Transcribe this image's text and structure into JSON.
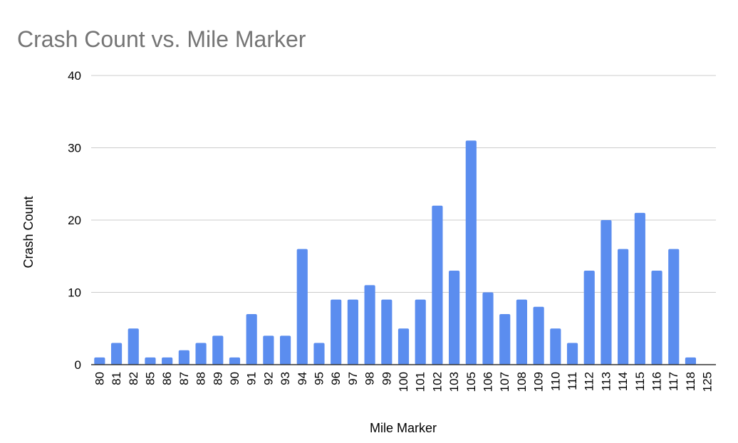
{
  "chart_data": {
    "type": "bar",
    "title": "Crash Count vs. Mile Marker",
    "xlabel": "Mile Marker",
    "ylabel": "Crash Count",
    "ylim": [
      0,
      40
    ],
    "yticks": [
      "0",
      "10",
      "20",
      "30",
      "40"
    ],
    "grid": true,
    "bar_color": "#5b8def",
    "categories": [
      "80",
      "81",
      "82",
      "85",
      "86",
      "87",
      "88",
      "89",
      "90",
      "91",
      "92",
      "93",
      "94",
      "95",
      "96",
      "97",
      "98",
      "99",
      "100",
      "101",
      "102",
      "103",
      "105",
      "106",
      "107",
      "108",
      "109",
      "110",
      "111",
      "112",
      "113",
      "114",
      "115",
      "116",
      "117",
      "118",
      "125"
    ],
    "values": [
      1,
      3,
      5,
      1,
      1,
      2,
      3,
      4,
      1,
      7,
      4,
      4,
      16,
      3,
      9,
      9,
      11,
      9,
      5,
      9,
      22,
      13,
      31,
      10,
      7,
      9,
      8,
      5,
      3,
      13,
      20,
      16,
      21,
      13,
      16,
      1,
      0
    ]
  }
}
